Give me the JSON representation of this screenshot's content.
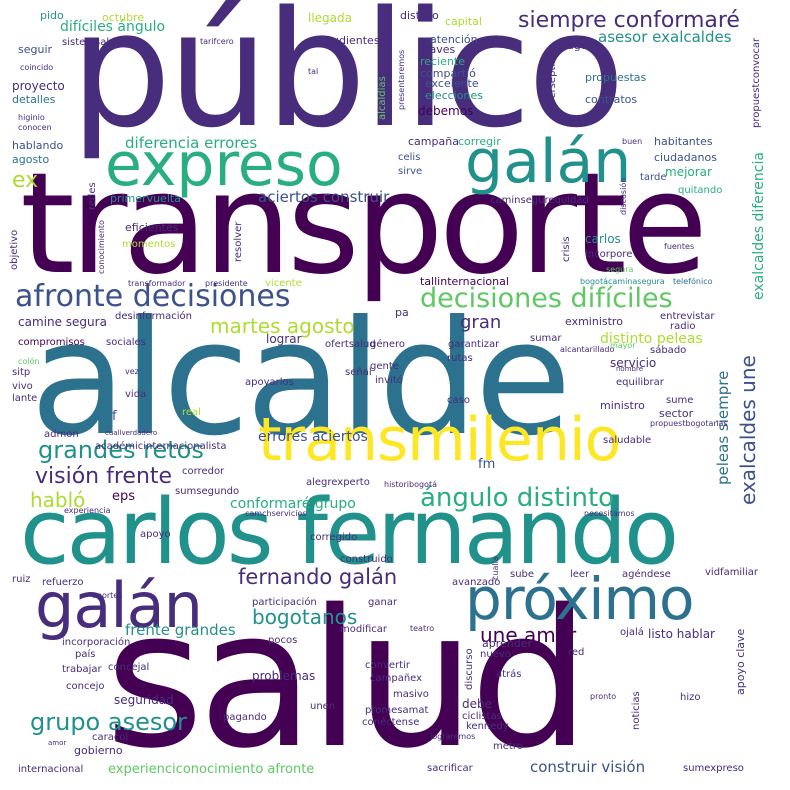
{
  "palette": {
    "dark_purple": "#440154",
    "purple": "#472d7b",
    "indigo": "#3b528b",
    "blue": "#2c728e",
    "teal": "#21918c",
    "green": "#28ae80",
    "light_green": "#5ec962",
    "lime": "#addc30",
    "yellow": "#fde725"
  },
  "words": {
    "publico": "público",
    "transporte": "transporte",
    "alcalde": "alcalde",
    "salud": "salud",
    "carlos_fernando": "carlos fernando",
    "transmilenio": "transmilenio",
    "expreso": "expreso",
    "galan_1": "galán",
    "galan_2": "galán",
    "proximo": "próximo",
    "afronte_decisiones": "afronte decisiones",
    "decisiones_dificiles": "decisiones difíciles",
    "siempre_conformare": "siempre conformaré",
    "angulo_distinto": "ángulo distinto",
    "vision_frente": "visión frente",
    "grandes_retos": "grandes retos",
    "grupo_asesor": "grupo asesor",
    "fernando_galan": "fernando galán",
    "bogotanos": "bogotanos",
    "martes_agosto": "martes agosto",
    "hablo": "habló",
    "une_amor": "une amor",
    "exalcaldes_une": "exalcaldes une",
    "asesor_exalcaldes": "asesor exalcaldes",
    "diferencia_errores": "diferencia errores",
    "errores_aciertos": "errores aciertos",
    "aciertos_construir": "aciertos construir",
    "construir_vision": "construir visión",
    "frente_grandes": "frente grandes",
    "gran": "gran",
    "ex": "ex",
    "dificiles_angulo": "difíciles ángulo",
    "conformare_grupo": "conformaré grupo",
    "distinto_peleas": "distinto peleas",
    "peleas_siempre": "peleas siempre",
    "exalcaldes_diferencia": "exalcaldes diferencia",
    "experienciconocimiento_afronte": "experienciconocimiento afronte",
    "eps": "eps",
    "fm": "fm",
    "f": "f",
    "pido": "pido",
    "octubre": "octubre",
    "llegada": "llegada",
    "distrito": "distrito",
    "capital": "capital",
    "pudientes": "pudientes",
    "atencion": "atención",
    "graves": "graves",
    "pago": "pago",
    "seguir": "seguir",
    "sistemsalud": "sistemsalud",
    "tarifcero": "tarifcero",
    "coincido": "coincido",
    "tal": "tal",
    "alcaldias": "alcaldías",
    "presentaremos": "presentaremos",
    "reciente": "reciente",
    "compartio": "compartió",
    "excelente": "excelente",
    "elecciones": "elecciones",
    "carrerseptima": "carrerséptima",
    "propuestas": "propuestas",
    "propuestconvocar": "propuestconvocar",
    "contratos": "contratos",
    "proyecto": "proyecto",
    "detalles": "detalles",
    "debemos": "debemos",
    "higinio": "higinio",
    "conocen": "conocen",
    "hablando": "hablando",
    "agosto": "agosto",
    "campana": "campaña",
    "corregir": "corregir",
    "buen": "buen",
    "habitantes": "habitantes",
    "ciudadanos": "ciudadanos",
    "celis": "celis",
    "sirve": "sirve",
    "tarde": "tarde",
    "mejorar": "mejorar",
    "quitando": "quitando",
    "redes": "redes",
    "primervuelta": "primervuelta",
    "caminsegurequidad": "caminsegurequidad",
    "discusion": "discusión",
    "eficientes": "eficientes",
    "objetivo": "objetivo",
    "conocimiento": "conocimiento",
    "momentos": "momentos",
    "resolver": "resolver",
    "crisis": "crisis",
    "carlos": "carlos",
    "incorpore": "incorpore",
    "fuentes": "fuentes",
    "segura": "segura",
    "telefonico": "telefónico",
    "tallinternacional": "tallinternacional",
    "bogotacaminasegura": "bogotácaminasegura",
    "transformador": "transformador",
    "presidente": "presidente",
    "vicente": "vicente",
    "camine_segura": "camine segura",
    "desinformacion": "desinformación",
    "pa": "pa",
    "exministro": "exministro",
    "entrevistar": "entrevistar",
    "radio": "radio",
    "compromisos": "compromisos",
    "sociales": "sociales",
    "lograr": "lograr",
    "ofertsalud": "ofertsalud",
    "genero": "género",
    "sumar": "sumar",
    "alcantarillado": "alcantarillado",
    "mayor": "mayor",
    "sabado": "sábado",
    "colon": "colón",
    "sitp": "sitp",
    "vivo": "vivo",
    "lante": "lante",
    "vez": "vez",
    "nombre": "nombre",
    "senal": "señal",
    "gente": "gente",
    "invito": "invitó",
    "rutas": "rutas",
    "garantizar": "garantizar",
    "servicio": "servicio",
    "equilibrar": "equilibrar",
    "vida": "vida",
    "apoyarlos": "apoyarlos",
    "caso": "caso",
    "ministro": "ministro",
    "sume": "sume",
    "sector": "sector",
    "real": "real",
    "admon": "admon",
    "cuallverdadero": "cuallverdadero",
    "academicinternacionalista": "académicinternacionalista",
    "saludable": "saludable",
    "propuestbogotanas": "propuestbogotanas",
    "corredor": "corredor",
    "alegrexperto": "alegrexperto",
    "historibogota": "historibogotá",
    "experiencia": "experiencia",
    "sumsegundo": "sumsegundo",
    "camchservicios": "camchservicios",
    "necesitamos": "necesitamos",
    "apoyo": "apoyo",
    "corregido": "corregido",
    "construido": "construido",
    "cualla": "cualla",
    "avanzado": "avanzado",
    "ruiz": "ruiz",
    "refuerzo": "refuerzo",
    "sube": "sube",
    "leer": "leer",
    "agendese": "agéndese",
    "vidfamiliar": "vidfamiliar",
    "aportes": "aportes",
    "participacion": "participación",
    "ganar": "ganar",
    "modificar": "modificar",
    "teatro": "teatro",
    "ojala": "ojalá",
    "listo_hablar": "listo hablar",
    "apoyo_clave": "apoyo clave",
    "incorporacion": "incorporación",
    "pocos": "pocos",
    "aprender": "aprender",
    "pais": "país",
    "concejal": "concejal",
    "nuevo": "nuevo",
    "red": "red",
    "trabajar": "trabajar",
    "concejo": "concejo",
    "problemas": "problemas",
    "convertir": "convertir",
    "campanex": "campañex",
    "seguridad": "seguridad",
    "unen": "unen",
    "discurso": "discurso",
    "atras": "atrás",
    "noticias": "noticias",
    "pagando": "pagando",
    "masivo": "masivo",
    "pronto": "pronto",
    "hizo": "hizo",
    "debe": "debe",
    "promesamat": "promesamat",
    "ciclistas": "ciclistas",
    "amor": "amor",
    "conectense": "conéctense",
    "caracol": "caracol",
    "lograremos": "lograremos",
    "kennedy": "kennedy",
    "gobierno": "gobierno",
    "metro": "metro",
    "internacional": "internacional",
    "sacrificar": "sacrificar",
    "sumexpreso": "sumexpreso"
  }
}
